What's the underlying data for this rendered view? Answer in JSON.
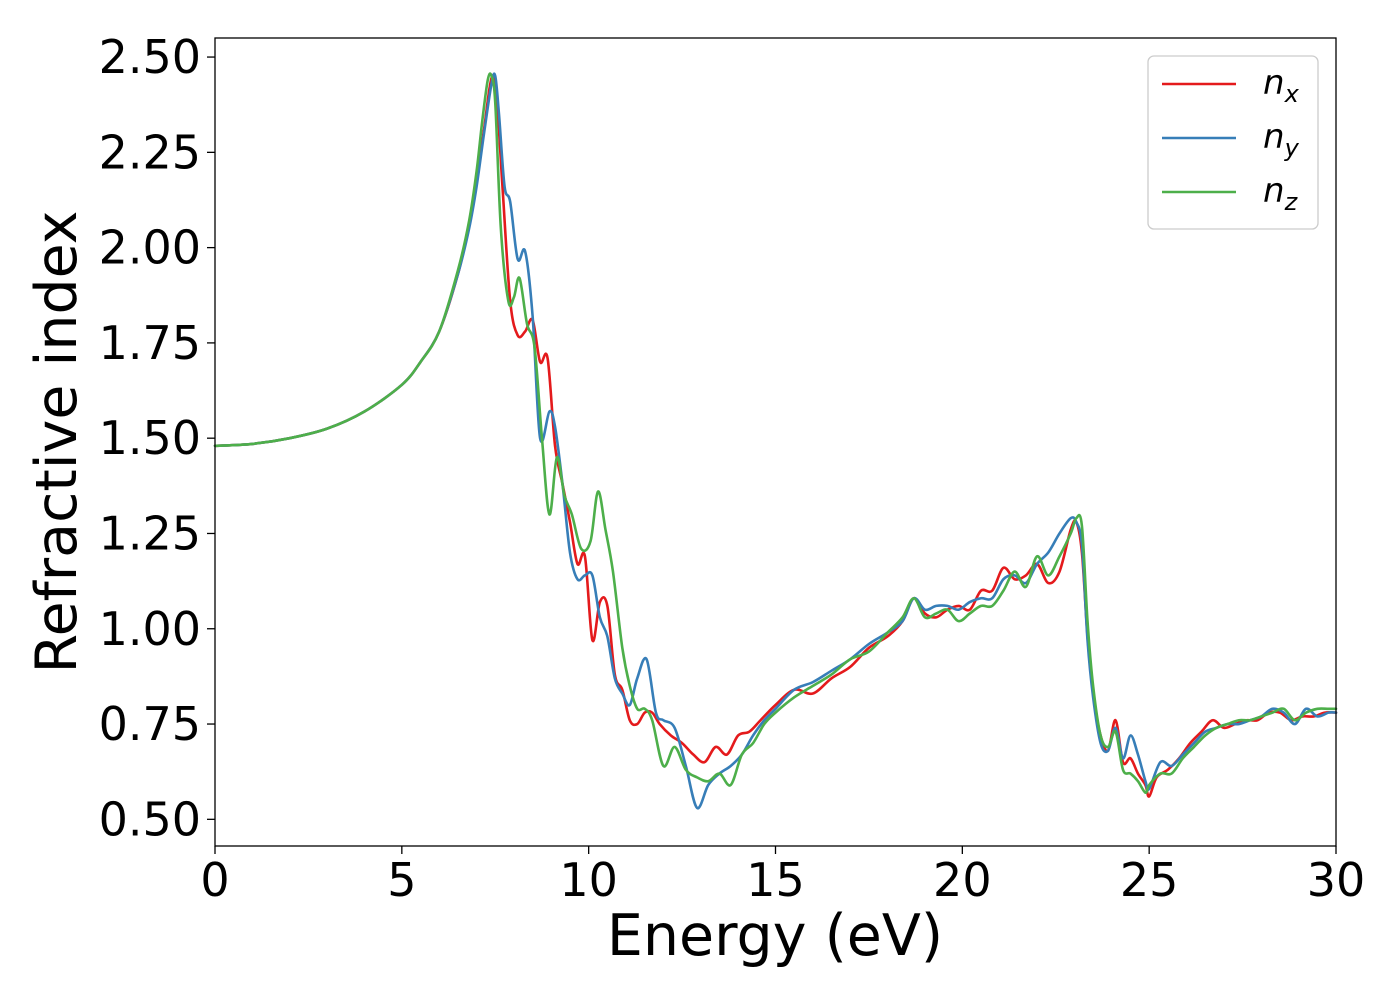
{
  "chart_data": {
    "type": "line",
    "title": "",
    "xlabel": "Energy (eV)",
    "ylabel": "Refractive index",
    "xlim": [
      0,
      30
    ],
    "ylim": [
      0.43,
      2.55
    ],
    "xticks": [
      0,
      5,
      10,
      15,
      20,
      25,
      30
    ],
    "xtick_labels": [
      "0",
      "5",
      "10",
      "15",
      "20",
      "25",
      "30"
    ],
    "yticks": [
      0.5,
      0.75,
      1.0,
      1.25,
      1.5,
      1.75,
      2.0,
      2.25,
      2.5
    ],
    "ytick_labels": [
      "0.50",
      "0.75",
      "1.00",
      "1.25",
      "1.50",
      "1.75",
      "2.00",
      "2.25",
      "2.50"
    ],
    "grid": false,
    "legend_position": "top-right",
    "series": [
      {
        "name": "n_x",
        "legend_main": "n",
        "legend_sub": "x",
        "color": "#e41a1c",
        "x": [
          0,
          1,
          2,
          3,
          4,
          5,
          5.5,
          6,
          6.5,
          6.8,
          7.0,
          7.2,
          7.35,
          7.45,
          7.55,
          7.7,
          7.9,
          8.1,
          8.3,
          8.5,
          8.7,
          8.9,
          9.1,
          9.3,
          9.5,
          9.7,
          9.9,
          10.1,
          10.3,
          10.5,
          10.7,
          10.9,
          11.1,
          11.3,
          11.5,
          11.7,
          11.9,
          12.2,
          12.5,
          12.8,
          13.1,
          13.4,
          13.7,
          14.0,
          14.3,
          14.6,
          15.0,
          15.5,
          16.0,
          16.5,
          17.0,
          17.5,
          18.0,
          18.4,
          18.7,
          19.0,
          19.3,
          19.6,
          19.9,
          20.2,
          20.5,
          20.8,
          21.1,
          21.4,
          21.7,
          22.0,
          22.3,
          22.6,
          22.9,
          23.05,
          23.2,
          23.35,
          23.5,
          23.7,
          23.9,
          24.1,
          24.3,
          24.5,
          24.7,
          24.9,
          25.0,
          25.2,
          25.5,
          25.8,
          26.1,
          26.4,
          26.7,
          27.0,
          27.3,
          27.6,
          27.9,
          28.2,
          28.5,
          28.8,
          29.1,
          29.4,
          29.7,
          30
        ],
        "y": [
          1.48,
          1.485,
          1.5,
          1.525,
          1.57,
          1.64,
          1.7,
          1.78,
          1.93,
          2.06,
          2.18,
          2.31,
          2.42,
          2.45,
          2.38,
          2.15,
          1.86,
          1.77,
          1.78,
          1.81,
          1.7,
          1.71,
          1.48,
          1.38,
          1.28,
          1.17,
          1.19,
          0.97,
          1.07,
          1.06,
          0.88,
          0.84,
          0.76,
          0.75,
          0.78,
          0.78,
          0.75,
          0.72,
          0.7,
          0.67,
          0.65,
          0.69,
          0.67,
          0.72,
          0.73,
          0.76,
          0.8,
          0.84,
          0.83,
          0.87,
          0.9,
          0.95,
          0.98,
          1.02,
          1.08,
          1.04,
          1.03,
          1.05,
          1.06,
          1.05,
          1.1,
          1.1,
          1.16,
          1.13,
          1.14,
          1.17,
          1.12,
          1.15,
          1.26,
          1.28,
          1.2,
          0.98,
          0.83,
          0.72,
          0.68,
          0.76,
          0.65,
          0.66,
          0.62,
          0.59,
          0.56,
          0.61,
          0.63,
          0.66,
          0.7,
          0.73,
          0.76,
          0.74,
          0.75,
          0.76,
          0.76,
          0.78,
          0.78,
          0.76,
          0.77,
          0.77,
          0.78,
          0.78
        ]
      },
      {
        "name": "n_y",
        "legend_main": "n",
        "legend_sub": "y",
        "color": "#377eb8",
        "x": [
          0,
          1,
          2,
          3,
          4,
          5,
          5.5,
          6,
          6.5,
          6.8,
          7.0,
          7.2,
          7.4,
          7.5,
          7.6,
          7.75,
          7.9,
          8.1,
          8.3,
          8.5,
          8.7,
          8.95,
          9.1,
          9.3,
          9.5,
          9.7,
          9.9,
          10.1,
          10.3,
          10.5,
          10.7,
          10.9,
          11.1,
          11.3,
          11.55,
          11.8,
          12.0,
          12.3,
          12.6,
          12.9,
          13.2,
          13.5,
          13.8,
          14.1,
          14.4,
          14.7,
          15.0,
          15.5,
          16.0,
          16.5,
          17.0,
          17.5,
          18.0,
          18.4,
          18.7,
          19.0,
          19.3,
          19.6,
          19.9,
          20.2,
          20.5,
          20.8,
          21.1,
          21.4,
          21.7,
          22.0,
          22.3,
          22.6,
          22.9,
          23.05,
          23.2,
          23.35,
          23.5,
          23.7,
          23.9,
          24.1,
          24.3,
          24.5,
          24.7,
          24.9,
          25.0,
          25.3,
          25.6,
          25.9,
          26.2,
          26.5,
          26.8,
          27.1,
          27.4,
          27.7,
          28.0,
          28.3,
          28.6,
          28.9,
          29.2,
          29.5,
          29.8,
          30
        ],
        "y": [
          1.48,
          1.485,
          1.5,
          1.525,
          1.57,
          1.64,
          1.7,
          1.78,
          1.93,
          2.05,
          2.16,
          2.3,
          2.43,
          2.45,
          2.35,
          2.16,
          2.12,
          1.97,
          1.99,
          1.82,
          1.5,
          1.57,
          1.53,
          1.38,
          1.2,
          1.13,
          1.14,
          1.14,
          1.03,
          0.98,
          0.87,
          0.83,
          0.8,
          0.87,
          0.92,
          0.78,
          0.76,
          0.74,
          0.64,
          0.53,
          0.59,
          0.62,
          0.64,
          0.67,
          0.72,
          0.76,
          0.79,
          0.84,
          0.86,
          0.89,
          0.92,
          0.96,
          0.99,
          1.02,
          1.08,
          1.05,
          1.06,
          1.06,
          1.05,
          1.07,
          1.08,
          1.08,
          1.13,
          1.14,
          1.12,
          1.17,
          1.2,
          1.25,
          1.29,
          1.28,
          1.22,
          0.97,
          0.82,
          0.7,
          0.68,
          0.74,
          0.66,
          0.72,
          0.67,
          0.6,
          0.58,
          0.65,
          0.64,
          0.67,
          0.7,
          0.73,
          0.74,
          0.75,
          0.75,
          0.76,
          0.77,
          0.79,
          0.78,
          0.75,
          0.79,
          0.77,
          0.78,
          0.78
        ]
      },
      {
        "name": "n_z",
        "legend_main": "n",
        "legend_sub": "z",
        "color": "#4daf4a",
        "x": [
          0,
          1,
          2,
          3,
          4,
          5,
          5.5,
          6,
          6.5,
          6.8,
          7.0,
          7.15,
          7.3,
          7.4,
          7.5,
          7.65,
          7.85,
          8.0,
          8.15,
          8.35,
          8.55,
          8.75,
          8.95,
          9.15,
          9.35,
          9.55,
          9.8,
          10.05,
          10.25,
          10.45,
          10.65,
          10.9,
          11.1,
          11.3,
          11.5,
          11.7,
          12.0,
          12.3,
          12.6,
          12.9,
          13.2,
          13.5,
          13.8,
          14.1,
          14.4,
          14.7,
          15.0,
          15.5,
          16.0,
          16.5,
          17.0,
          17.5,
          18.0,
          18.4,
          18.7,
          19.0,
          19.3,
          19.6,
          19.9,
          20.2,
          20.5,
          20.8,
          21.1,
          21.4,
          21.7,
          22.0,
          22.3,
          22.6,
          22.9,
          23.05,
          23.2,
          23.35,
          23.5,
          23.7,
          23.9,
          24.1,
          24.3,
          24.5,
          24.7,
          24.9,
          25.0,
          25.3,
          25.6,
          25.9,
          26.2,
          26.5,
          26.8,
          27.1,
          27.4,
          27.7,
          28.0,
          28.3,
          28.6,
          28.9,
          29.2,
          29.5,
          29.8,
          30
        ],
        "y": [
          1.48,
          1.485,
          1.5,
          1.525,
          1.57,
          1.64,
          1.7,
          1.78,
          1.94,
          2.07,
          2.2,
          2.33,
          2.44,
          2.45,
          2.38,
          2.05,
          1.86,
          1.87,
          1.92,
          1.8,
          1.74,
          1.5,
          1.3,
          1.45,
          1.35,
          1.3,
          1.21,
          1.23,
          1.36,
          1.26,
          1.15,
          0.95,
          0.85,
          0.79,
          0.79,
          0.76,
          0.64,
          0.69,
          0.63,
          0.61,
          0.6,
          0.62,
          0.59,
          0.67,
          0.7,
          0.75,
          0.78,
          0.82,
          0.85,
          0.88,
          0.92,
          0.94,
          0.99,
          1.03,
          1.08,
          1.03,
          1.04,
          1.05,
          1.02,
          1.04,
          1.06,
          1.06,
          1.1,
          1.15,
          1.11,
          1.19,
          1.14,
          1.19,
          1.25,
          1.29,
          1.27,
          1.02,
          0.85,
          0.72,
          0.69,
          0.73,
          0.63,
          0.62,
          0.6,
          0.57,
          0.59,
          0.62,
          0.62,
          0.66,
          0.69,
          0.72,
          0.74,
          0.75,
          0.76,
          0.76,
          0.77,
          0.78,
          0.79,
          0.76,
          0.78,
          0.79,
          0.79,
          0.79
        ]
      }
    ]
  }
}
